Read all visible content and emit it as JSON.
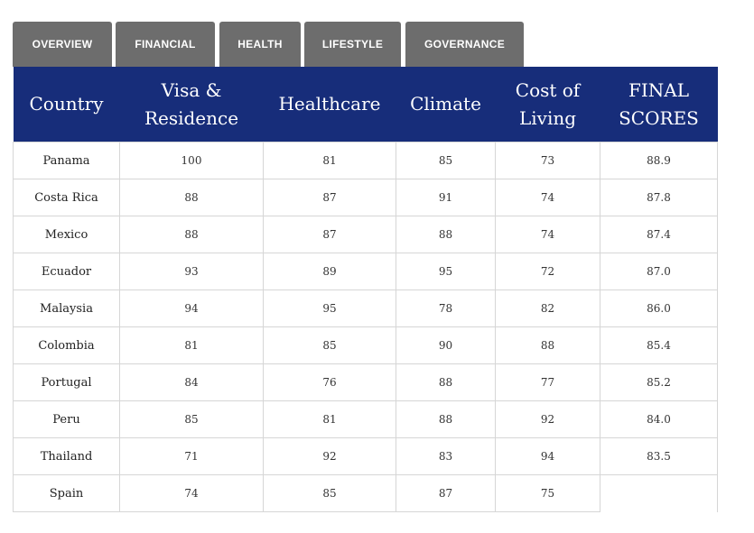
{
  "tabs": [
    "OVERVIEW",
    "FINANCIAL",
    "HEALTH",
    "LIFESTYLE",
    "GOVERNANCE"
  ],
  "table": {
    "headers": [
      [
        "Country"
      ],
      [
        "Visa &",
        "Residence"
      ],
      [
        "Healthcare"
      ],
      [
        "Climate"
      ],
      [
        "Cost of",
        "Living"
      ],
      [
        "FINAL",
        "SCORES"
      ]
    ],
    "rows": [
      [
        "Panama",
        "100",
        "81",
        "85",
        "73",
        "88.9"
      ],
      [
        "Costa Rica",
        "88",
        "87",
        "91",
        "74",
        "87.8"
      ],
      [
        "Mexico",
        "88",
        "87",
        "88",
        "74",
        "87.4"
      ],
      [
        "Ecuador",
        "93",
        "89",
        "95",
        "72",
        "87.0"
      ],
      [
        "Malaysia",
        "94",
        "95",
        "78",
        "82",
        "86.0"
      ],
      [
        "Colombia",
        "81",
        "85",
        "90",
        "88",
        "85.4"
      ],
      [
        "Portugal",
        "84",
        "76",
        "88",
        "77",
        "85.2"
      ],
      [
        "Peru",
        "85",
        "81",
        "88",
        "92",
        "84.0"
      ],
      [
        "Thailand",
        "71",
        "92",
        "83",
        "94",
        "83.5"
      ],
      [
        "Spain",
        "74",
        "85",
        "87",
        "75",
        ""
      ]
    ]
  },
  "colors": {
    "header_bg": "#172d7a",
    "tab_bg": "#6d6d6d",
    "grid": "#d6d6d6"
  }
}
